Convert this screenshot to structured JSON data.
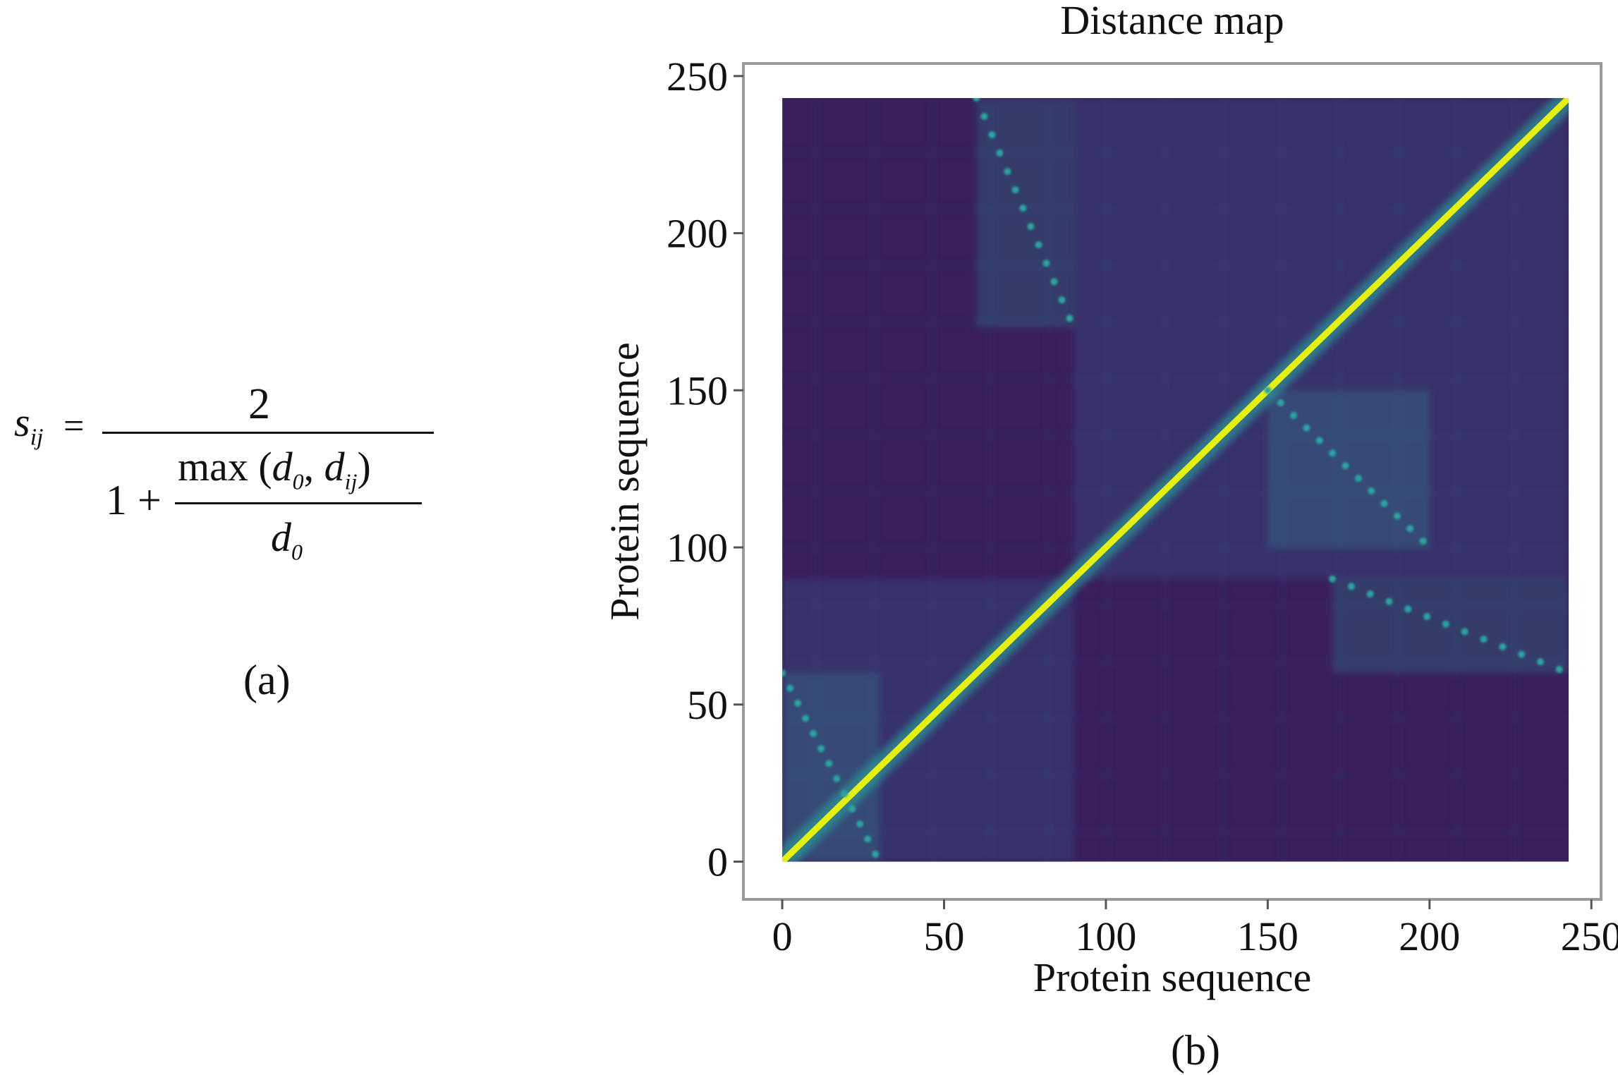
{
  "formula": {
    "lhs_symbol": "s",
    "lhs_sub": "ij",
    "equals": "=",
    "numerator": "2",
    "one_plus": "1 +",
    "inner_num_prefix": "max (",
    "inner_num_d0": "d",
    "inner_num_d0_sub": "0",
    "inner_num_comma": ", ",
    "inner_num_dij": "d",
    "inner_num_dij_sub": "ij",
    "inner_num_suffix": ")",
    "inner_den": "d",
    "inner_den_sub": "0",
    "label": "(a)"
  },
  "panel_b_label": "(b)",
  "chart_data": {
    "type": "heatmap",
    "title": "Distance map",
    "xlabel": "Protein sequence",
    "ylabel": "Protein sequence",
    "xlim": [
      -12,
      253
    ],
    "ylim": [
      -12,
      254
    ],
    "x_ticks": [
      0,
      50,
      100,
      150,
      200,
      250
    ],
    "y_ticks": [
      0,
      50,
      100,
      150,
      200,
      250
    ],
    "matrix_size": 243,
    "colormap": "viridis",
    "colors": {
      "low": "#3b1f5c",
      "mid": "#2aa6a0",
      "high": "#e6f00f",
      "frame": "#999999"
    },
    "structural_regions": [
      {
        "x": [
          0,
          90
        ],
        "y": [
          0,
          90
        ]
      },
      {
        "x": [
          90,
          243
        ],
        "y": [
          90,
          243
        ]
      }
    ],
    "contact_bands": [
      {
        "x": [
          60,
          90
        ],
        "y": [
          170,
          243
        ]
      },
      {
        "x": [
          170,
          243
        ],
        "y": [
          60,
          90
        ]
      },
      {
        "x": [
          0,
          30
        ],
        "y": [
          0,
          60
        ]
      },
      {
        "x": [
          150,
          200
        ],
        "y": [
          100,
          150
        ]
      }
    ]
  }
}
